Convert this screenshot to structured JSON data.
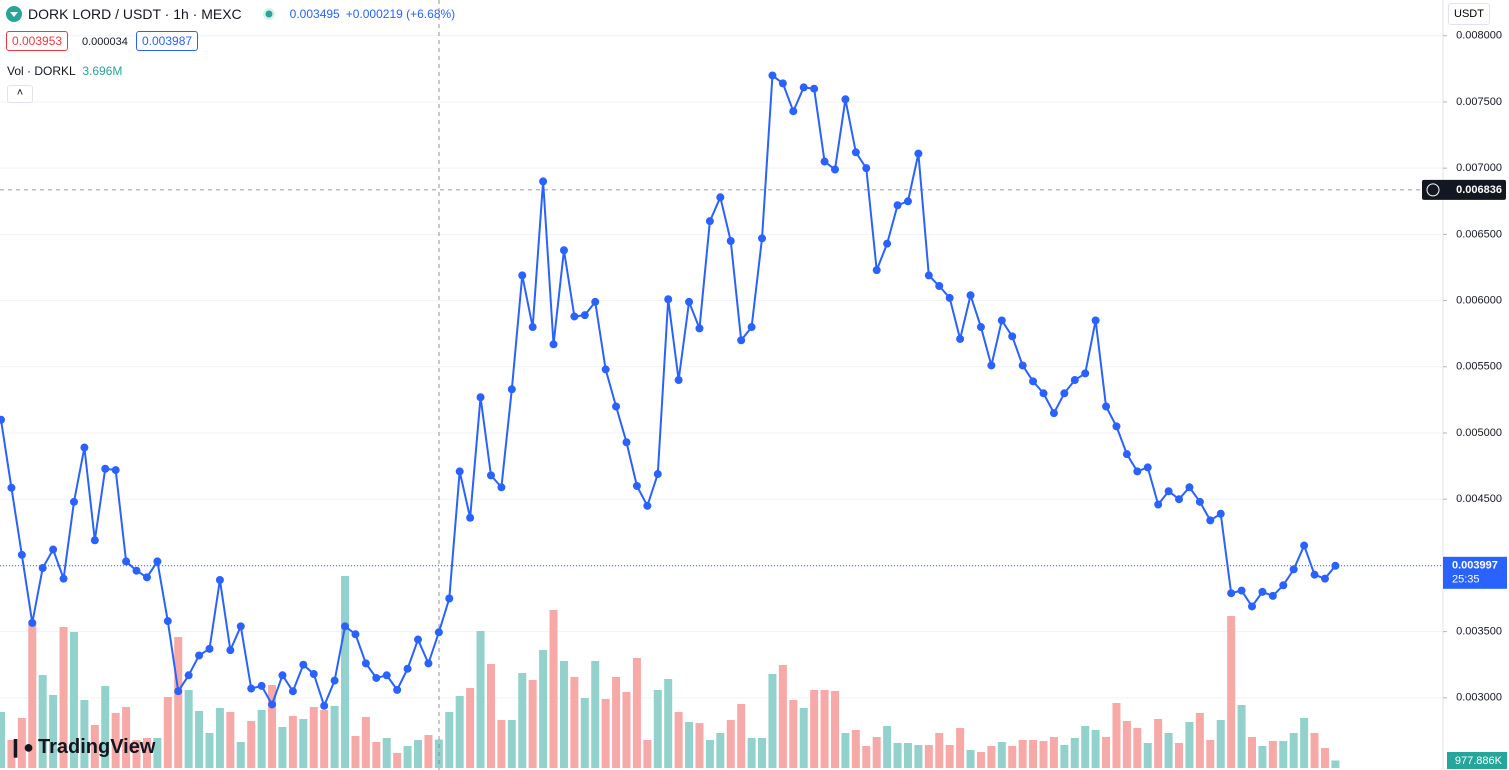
{
  "chart_data": {
    "type": "line",
    "title": "DORK LORD / USDT · 1h · MEXC",
    "header": {
      "close": "0.003495",
      "change": "+0.000219 (+6.68%)",
      "bid": "0.003953",
      "spread": "0.000034",
      "ask": "0.003987",
      "volume": "3.696M"
    },
    "volume_title": "Vol · DORKL",
    "currency": "USDT",
    "watermark": "TradingView",
    "ylim": [
      0.00247,
      0.00827
    ],
    "yticks": [
      {
        "value": 0.003,
        "label": "0.003000"
      },
      {
        "value": 0.0035,
        "label": "0.003500"
      },
      {
        "value": 0.004,
        "label": "0.004000"
      },
      {
        "value": 0.0045,
        "label": "0.004500"
      },
      {
        "value": 0.005,
        "label": "0.005000"
      },
      {
        "value": 0.0055,
        "label": "0.005500"
      },
      {
        "value": 0.006,
        "label": "0.006000"
      },
      {
        "value": 0.0065,
        "label": "0.006500"
      },
      {
        "value": 0.007,
        "label": "0.007000"
      },
      {
        "value": 0.0075,
        "label": "0.007500"
      },
      {
        "value": 0.008,
        "label": "0.008000"
      }
    ],
    "grid": true,
    "crosshair": {
      "value": 0.006836,
      "label": "0.006836"
    },
    "last_price": {
      "value": 0.003997,
      "label": "0.003997",
      "countdown": "25:35"
    },
    "series": [
      {
        "name": "DORK LORD / USDT",
        "color": "#2962ff",
        "values": [
          0.0051,
          0.004586,
          0.00408,
          0.003566,
          0.00398,
          0.00412,
          0.0039,
          0.00448,
          0.00489,
          0.00419,
          0.00473,
          0.00472,
          0.00403,
          0.00396,
          0.00391,
          0.00403,
          0.00358,
          0.00305,
          0.00317,
          0.00332,
          0.00337,
          0.00389,
          0.00336,
          0.00354,
          0.00307,
          0.00309,
          0.00295,
          0.00317,
          0.00305,
          0.00325,
          0.00318,
          0.00294,
          0.00313,
          0.00354,
          0.00348,
          0.00326,
          0.00315,
          0.00317,
          0.00306,
          0.00322,
          0.00344,
          0.00326,
          0.003495,
          0.00375,
          0.00471,
          0.00436,
          0.00527,
          0.00468,
          0.00459,
          0.00533,
          0.00619,
          0.0058,
          0.0069,
          0.00567,
          0.00638,
          0.00588,
          0.00589,
          0.00599,
          0.00548,
          0.0052,
          0.00493,
          0.0046,
          0.00445,
          0.00469,
          0.00601,
          0.0054,
          0.00599,
          0.00579,
          0.0066,
          0.00678,
          0.00645,
          0.0057,
          0.0058,
          0.00647,
          0.0077,
          0.00764,
          0.00743,
          0.00761,
          0.0076,
          0.00705,
          0.00699,
          0.00752,
          0.00712,
          0.007,
          0.00623,
          0.00643,
          0.00672,
          0.00675,
          0.00711,
          0.00619,
          0.00611,
          0.00602,
          0.00571,
          0.00604,
          0.0058,
          0.00551,
          0.00585,
          0.00573,
          0.00551,
          0.00539,
          0.0053,
          0.00515,
          0.0053,
          0.0054,
          0.00545,
          0.00585,
          0.0052,
          0.00505,
          0.00484,
          0.00471,
          0.00474,
          0.00446,
          0.00456,
          0.0045,
          0.00459,
          0.00448,
          0.00434,
          0.00439,
          0.00379,
          0.00381,
          0.00369,
          0.0038,
          0.00377,
          0.00385,
          0.00397,
          0.00415,
          0.00393,
          0.0039,
          0.003997
        ]
      }
    ],
    "volume": {
      "up_color": "#93d2cc",
      "down_color": "#f7a9a7",
      "value_label": "977.886K",
      "values": [
        7280,
        3640,
        6500,
        18850,
        12090,
        9490,
        18330,
        17680,
        8840,
        5590,
        10660,
        7150,
        7930,
        3640,
        3900,
        3900,
        9230,
        17030,
        10140,
        7410,
        4550,
        7800,
        7280,
        3380,
        6110,
        7540,
        10790,
        5330,
        6760,
        6370,
        7930,
        7540,
        8060,
        24960,
        4160,
        6630,
        3380,
        3900,
        1950,
        2860,
        3640,
        4290,
        3696,
        7280,
        9360,
        10400,
        17810,
        13520,
        6240,
        6240,
        12350,
        11440,
        15340,
        20540,
        13910,
        11830,
        9100,
        13910,
        8970,
        11830,
        9880,
        14300,
        3640,
        10140,
        11570,
        7280,
        5980,
        5850,
        3640,
        4550,
        6240,
        8320,
        3900,
        3900,
        12220,
        13390,
        8840,
        7800,
        10140,
        10140,
        10010,
        4550,
        4940,
        2860,
        4030,
        5460,
        3250,
        3250,
        2990,
        2990,
        4550,
        2990,
        5200,
        2340,
        2080,
        2860,
        3380,
        2860,
        3640,
        3640,
        3510,
        4030,
        2990,
        3900,
        5460,
        4940,
        4030,
        8450,
        6110,
        5200,
        3250,
        6370,
        4550,
        3250,
        5980,
        7150,
        3640,
        6240,
        19760,
        8190,
        4030,
        2860,
        3510,
        3510,
        4550,
        6500,
        4550,
        2600,
        977.886
      ]
    }
  }
}
